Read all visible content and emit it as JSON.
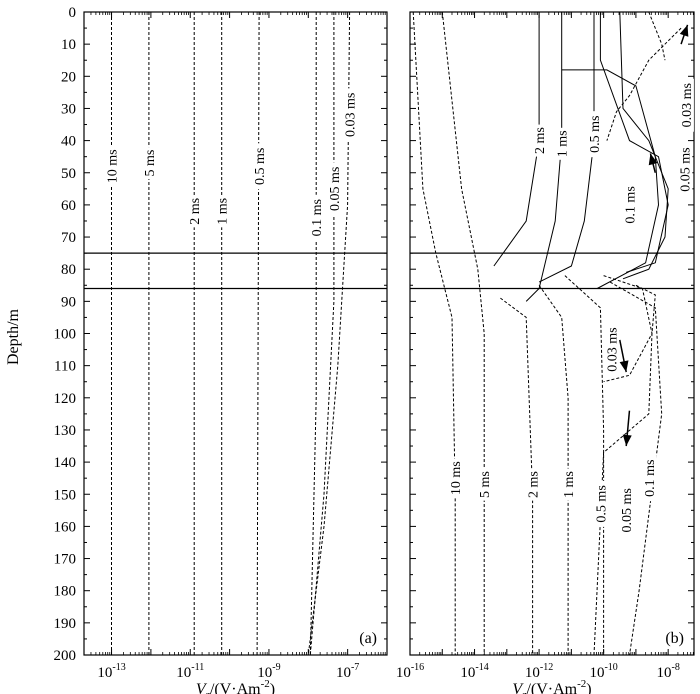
{
  "chart_data": [
    {
      "type": "line",
      "panel_label": "(a)",
      "ylabel": "Depth/m",
      "xlabel_main": "V",
      "xlabel_sub": "z",
      "xlabel_rest": "/(V·Am",
      "xlabel_sup": "-2",
      "xlabel_end": ")",
      "x_scale": "log",
      "xlim_exp": [
        -13.7,
        -6.0
      ],
      "ylim": [
        0,
        200
      ],
      "x_ticks": [
        {
          "base": "10",
          "exp": "-13",
          "value": -13
        },
        {
          "base": "10",
          "exp": "-11",
          "value": -11
        },
        {
          "base": "10",
          "exp": "-9",
          "value": -9
        },
        {
          "base": "10",
          "exp": "-7",
          "value": -7
        }
      ],
      "y_ticks": [
        "0",
        "10",
        "20",
        "30",
        "40",
        "50",
        "60",
        "70",
        "80",
        "90",
        "100",
        "110",
        "120",
        "130",
        "140",
        "150",
        "160",
        "170",
        "180",
        "190",
        "200"
      ],
      "layer": {
        "top": 75,
        "bottom": 86
      },
      "series": [
        {
          "name": "10 ms",
          "points": [
            [
              -13.0,
              0
            ],
            [
              -13.0,
              200
            ]
          ]
        },
        {
          "name": "5 ms",
          "points": [
            [
              -12.05,
              0
            ],
            [
              -12.05,
              200
            ]
          ]
        },
        {
          "name": "2 ms",
          "points": [
            [
              -10.9,
              0
            ],
            [
              -10.9,
              200
            ]
          ]
        },
        {
          "name": "1 ms",
          "points": [
            [
              -10.2,
              0
            ],
            [
              -10.2,
              200
            ]
          ]
        },
        {
          "name": "0.5 ms",
          "points": [
            [
              -9.25,
              0
            ],
            [
              -9.3,
              200
            ]
          ]
        },
        {
          "name": "0.1 ms",
          "points": [
            [
              -7.8,
              0
            ],
            [
              -7.8,
              120
            ],
            [
              -7.95,
              200
            ]
          ]
        },
        {
          "name": "0.05 ms",
          "points": [
            [
              -7.35,
              0
            ],
            [
              -7.35,
              90
            ],
            [
              -7.6,
              150
            ],
            [
              -7.95,
              200
            ]
          ]
        },
        {
          "name": "0.03 ms",
          "points": [
            [
              -6.95,
              0
            ],
            [
              -7.0,
              60
            ],
            [
              -7.25,
              110
            ],
            [
              -7.6,
              160
            ],
            [
              -8.0,
              200
            ]
          ]
        }
      ],
      "labels": [
        {
          "text": "10 ms",
          "x": -13.0,
          "y": 48
        },
        {
          "text": "5 ms",
          "x": -12.05,
          "y": 47
        },
        {
          "text": "2 ms",
          "x": -10.9,
          "y": 62
        },
        {
          "text": "1 ms",
          "x": -10.2,
          "y": 62
        },
        {
          "text": "0.5 ms",
          "x": -9.25,
          "y": 48
        },
        {
          "text": "0.1 ms",
          "x": -7.8,
          "y": 64
        },
        {
          "text": "0.05 ms",
          "x": -7.35,
          "y": 55
        },
        {
          "text": "0.03 ms",
          "x": -6.95,
          "y": 32
        }
      ]
    },
    {
      "type": "line",
      "panel_label": "(b)",
      "xlabel_main": "V",
      "xlabel_sub": "z",
      "xlabel_rest": "/(V·Am",
      "xlabel_sup": "-2",
      "xlabel_end": ")",
      "x_scale": "log",
      "xlim_exp": [
        -16.0,
        -7.2
      ],
      "ylim": [
        0,
        200
      ],
      "x_ticks": [
        {
          "base": "10",
          "exp": "-16",
          "value": -16
        },
        {
          "base": "10",
          "exp": "-14",
          "value": -14
        },
        {
          "base": "10",
          "exp": "-12",
          "value": -12
        },
        {
          "base": "10",
          "exp": "-10",
          "value": -10
        },
        {
          "base": "10",
          "exp": "-8",
          "value": -8
        }
      ],
      "layer": {
        "top": 75,
        "bottom": 86
      },
      "series": [
        {
          "name": "10 ms",
          "style": "dashed",
          "points": [
            [
              -15.9,
              0
            ],
            [
              -15.6,
              55
            ],
            [
              -15.2,
              75
            ],
            [
              -14.7,
              95
            ],
            [
              -14.6,
              150
            ],
            [
              -14.6,
              200
            ]
          ]
        },
        {
          "name": "5 ms",
          "style": "dashed",
          "points": [
            [
              -15.0,
              0
            ],
            [
              -14.4,
              55
            ],
            [
              -13.9,
              80
            ],
            [
              -13.7,
              100
            ],
            [
              -13.7,
              200
            ]
          ]
        },
        {
          "name": "2 ms",
          "style": "solid",
          "points": [
            [
              -12.0,
              0
            ],
            [
              -12.0,
              40
            ],
            [
              -12.4,
              65
            ],
            [
              -13.4,
              79
            ]
          ]
        },
        {
          "name": "2 ms (below)",
          "style": "dashed",
          "points": [
            [
              -13.2,
              89
            ],
            [
              -12.4,
              95
            ],
            [
              -12.2,
              150
            ],
            [
              -12.2,
              200
            ]
          ]
        },
        {
          "name": "1 ms",
          "style": "solid",
          "points": [
            [
              -11.3,
              0
            ],
            [
              -11.3,
              40
            ],
            [
              -11.5,
              65
            ],
            [
              -12.0,
              86
            ],
            [
              -12.4,
              90
            ]
          ]
        },
        {
          "name": "1 ms (below)",
          "style": "dashed",
          "points": [
            [
              -12.0,
              85
            ],
            [
              -11.3,
              95
            ],
            [
              -11.1,
              120
            ],
            [
              -11.1,
              200
            ]
          ]
        },
        {
          "name": "0.5 ms",
          "style": "solid",
          "points": [
            [
              -10.3,
              0
            ],
            [
              -10.3,
              40
            ],
            [
              -10.6,
              65
            ],
            [
              -11.0,
              79
            ],
            [
              -12.0,
              84
            ]
          ]
        },
        {
          "name": "0.5 ms (below)",
          "style": "dashed",
          "points": [
            [
              -11.2,
              82
            ],
            [
              -10.1,
              92
            ],
            [
              -10.0,
              130
            ],
            [
              -10.0,
              200
            ]
          ]
        },
        {
          "name": "0.1 ms",
          "style": "solid",
          "points": [
            [
              -10.1,
              0
            ],
            [
              -10.1,
              15
            ],
            [
              -9.2,
              40
            ],
            [
              -8.3,
              45
            ],
            [
              -8.0,
              60
            ],
            [
              -8.4,
              78
            ],
            [
              -9.3,
              81
            ]
          ]
        },
        {
          "name": "0.1 ms (below)",
          "style": "dashed",
          "points": [
            [
              -9.8,
              84
            ],
            [
              -8.4,
              92
            ],
            [
              -8.2,
              125
            ],
            [
              -8.9,
              180
            ],
            [
              -9.2,
              200
            ]
          ]
        },
        {
          "name": "0.05 ms",
          "style": "solid",
          "points": [
            [
              -9.5,
              0
            ],
            [
              -9.4,
              30
            ],
            [
              -8.6,
              40
            ],
            [
              -8.0,
              55
            ],
            [
              -8.1,
              70
            ],
            [
              -8.6,
              80
            ],
            [
              -9.4,
              83
            ]
          ]
        },
        {
          "name": "0.05 ms (below)",
          "style": "dashed",
          "points": [
            [
              -9.0,
              85
            ],
            [
              -8.4,
              88
            ],
            [
              -8.5,
              100
            ],
            [
              -8.6,
              125
            ],
            [
              -10.0,
              137
            ],
            [
              -10.3,
              200
            ]
          ]
        },
        {
          "name": "0.03 ms",
          "style": "solid",
          "points": [
            [
              -11.3,
              18
            ],
            [
              -9.9,
              18
            ],
            [
              -9.0,
              23
            ],
            [
              -8.4,
              45
            ],
            [
              -8.3,
              60
            ],
            [
              -8.7,
              78
            ],
            [
              -10.2,
              86
            ]
          ]
        },
        {
          "name": "0.03 ms (below)",
          "style": "dashed",
          "points": [
            [
              -10.0,
              82
            ],
            [
              -8.8,
              86
            ],
            [
              -8.5,
              100
            ],
            [
              -9.2,
              113
            ],
            [
              -10.0,
              115
            ]
          ]
        },
        {
          "name": "0.03 ms (top)",
          "style": "dashed",
          "points": [
            [
              -7.6,
              5
            ],
            [
              -8.6,
              15
            ],
            [
              -9.2,
              26
            ],
            [
              -9.6,
              31
            ],
            [
              -9.9,
              40
            ]
          ]
        },
        {
          "name": "upper dashed tail",
          "style": "dashed",
          "points": [
            [
              -8.6,
              0
            ],
            [
              -8.2,
              10
            ],
            [
              -8.1,
              15
            ]
          ]
        }
      ],
      "labels": [
        {
          "text": "2 ms",
          "x": -12.0,
          "y": 40
        },
        {
          "text": "1 ms",
          "x": -11.3,
          "y": 41
        },
        {
          "text": "0.5 ms",
          "x": -10.3,
          "y": 38
        },
        {
          "text": "0.1 ms",
          "x": -9.2,
          "y": 60
        },
        {
          "text": "0.05 ms",
          "x": -7.5,
          "y": 49
        },
        {
          "text": "0.03 ms",
          "x": -7.45,
          "y": 29
        },
        {
          "text": "0.03 ms",
          "x": -9.75,
          "y": 105
        },
        {
          "text": "10 ms",
          "x": -14.6,
          "y": 145
        },
        {
          "text": "5 ms",
          "x": -13.7,
          "y": 147
        },
        {
          "text": "2 ms",
          "x": -12.2,
          "y": 147
        },
        {
          "text": "1 ms",
          "x": -11.1,
          "y": 147
        },
        {
          "text": "0.5 ms",
          "x": -10.1,
          "y": 153
        },
        {
          "text": "0.05 ms",
          "x": -9.3,
          "y": 155
        },
        {
          "text": "0.1 ms",
          "x": -8.6,
          "y": 145
        }
      ],
      "arrows": [
        {
          "from": [
            -7.6,
            10
          ],
          "to": [
            -7.4,
            4
          ]
        },
        {
          "from": [
            -8.4,
            50
          ],
          "to": [
            -8.55,
            44
          ]
        },
        {
          "from": [
            -9.5,
            102
          ],
          "to": [
            -9.3,
            112
          ]
        },
        {
          "from": [
            -9.2,
            124
          ],
          "to": [
            -9.3,
            135
          ]
        }
      ]
    }
  ]
}
